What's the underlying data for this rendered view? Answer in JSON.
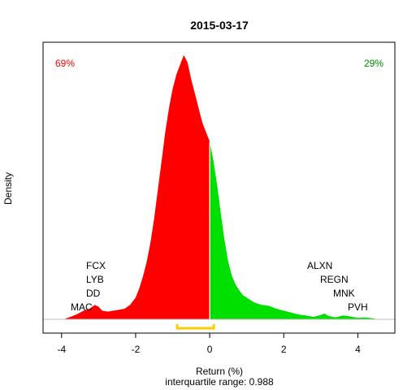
{
  "chart_data": {
    "type": "area",
    "title": "2015-03-17",
    "xlabel": "Return (%)",
    "ylabel": "Density",
    "subtitle": "interquartile range: 0.988",
    "xlim": [
      -4.5,
      5.0
    ],
    "ylim": [
      0,
      0.56
    ],
    "x_ticks": [
      -4,
      -2,
      0,
      2,
      4
    ],
    "split_at": 0,
    "iqr": [
      -0.88,
      0.11
    ],
    "density": {
      "x": [
        -3.95,
        -3.8,
        -3.6,
        -3.4,
        -3.25,
        -3.1,
        -3.0,
        -2.9,
        -2.75,
        -2.6,
        -2.45,
        -2.3,
        -2.15,
        -2.0,
        -1.9,
        -1.8,
        -1.7,
        -1.6,
        -1.5,
        -1.4,
        -1.3,
        -1.2,
        -1.1,
        -1.0,
        -0.9,
        -0.8,
        -0.7,
        -0.6,
        -0.5,
        -0.4,
        -0.3,
        -0.2,
        -0.1,
        0.0,
        0.1,
        0.2,
        0.3,
        0.4,
        0.5,
        0.6,
        0.7,
        0.8,
        0.9,
        1.0,
        1.2,
        1.4,
        1.6,
        1.8,
        2.0,
        2.2,
        2.4,
        2.6,
        2.8,
        3.0,
        3.1,
        3.2,
        3.4,
        3.6,
        3.8,
        4.0,
        4.2,
        4.4,
        4.55
      ],
      "y": [
        0.0,
        0.004,
        0.01,
        0.018,
        0.022,
        0.03,
        0.026,
        0.018,
        0.016,
        0.018,
        0.02,
        0.022,
        0.03,
        0.045,
        0.065,
        0.09,
        0.12,
        0.16,
        0.21,
        0.27,
        0.33,
        0.39,
        0.44,
        0.48,
        0.51,
        0.53,
        0.55,
        0.535,
        0.5,
        0.47,
        0.44,
        0.41,
        0.39,
        0.37,
        0.33,
        0.28,
        0.22,
        0.165,
        0.12,
        0.09,
        0.072,
        0.06,
        0.05,
        0.045,
        0.035,
        0.03,
        0.028,
        0.022,
        0.018,
        0.014,
        0.01,
        0.008,
        0.005,
        0.009,
        0.012,
        0.007,
        0.004,
        0.008,
        0.006,
        0.003,
        0.004,
        0.002,
        0.0
      ]
    },
    "left_share": "69%",
    "right_share": "29%",
    "left_tickers": [
      "FCX",
      "LYB",
      "DD",
      "MAC"
    ],
    "right_tickers": [
      "ALXN",
      "REGN",
      "MNK",
      "PVH"
    ],
    "colors": {
      "negative": "#ff0000",
      "positive": "#00e000",
      "iqr": "#ffcc00",
      "axis": "#000000",
      "baseline": "#bfbfbf"
    }
  }
}
